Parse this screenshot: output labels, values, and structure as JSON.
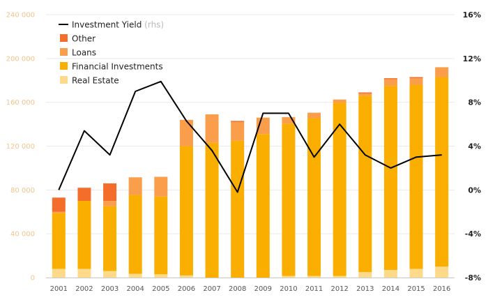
{
  "chart_data": {
    "type": "bar",
    "stacked": true,
    "categories": [
      "2001",
      "2002",
      "2003",
      "2004",
      "2005",
      "2006",
      "2007",
      "2008",
      "2009",
      "2010",
      "2011",
      "2012",
      "2013",
      "2014",
      "2015",
      "2016"
    ],
    "series": [
      {
        "name": "Real Estate",
        "color": "#fdd98a",
        "values": [
          8000,
          8000,
          6000,
          3500,
          3000,
          2000,
          0,
          0,
          0,
          1500,
          1500,
          1500,
          5000,
          7000,
          8000,
          10000
        ]
      },
      {
        "name": "Financial Investments",
        "color": "#f9ae00",
        "values": [
          51000,
          62000,
          59000,
          72000,
          71000,
          118000,
          123000,
          125000,
          131000,
          139000,
          144000,
          158000,
          161000,
          168000,
          168000,
          173000
        ]
      },
      {
        "name": "Loans",
        "color": "#fb9e4b",
        "values": [
          1000,
          0,
          5000,
          16000,
          18000,
          24000,
          26000,
          17000,
          15000,
          6000,
          5000,
          3000,
          2000,
          6000,
          6000,
          9000
        ]
      },
      {
        "name": "Other",
        "color": "#f56d2b",
        "values": [
          13000,
          12000,
          16000,
          0,
          0,
          0,
          0,
          1000,
          0,
          0,
          0,
          0,
          1000,
          1000,
          1000,
          0
        ]
      }
    ],
    "line_series": {
      "name": "Investment Yield",
      "name_suffix": "(rhs)",
      "color": "#000000",
      "values": [
        0.0,
        5.4,
        3.2,
        9.0,
        9.9,
        6.3,
        3.6,
        -0.2,
        7.0,
        7.0,
        3.0,
        6.0,
        3.2,
        2.0,
        3.0,
        3.2
      ]
    },
    "y_left": {
      "min": 0,
      "max": 240000,
      "ticks": [
        "0",
        "40 000",
        "80 000",
        "120 000",
        "160 000",
        "200 000",
        "240 000"
      ],
      "tick_values": [
        0,
        40000,
        80000,
        120000,
        160000,
        200000,
        240000
      ]
    },
    "y_right": {
      "min": -8,
      "max": 16,
      "ticks": [
        "-8%",
        "-4%",
        "0%",
        "4%",
        "8%",
        "12%",
        "16%"
      ],
      "tick_values": [
        -8,
        -4,
        0,
        4,
        8,
        12,
        16
      ]
    },
    "grid": true,
    "legend": {
      "placement": "top-left",
      "entries": [
        {
          "label": "Investment Yield",
          "suffix": "(rhs)",
          "kind": "line",
          "color": "#000000"
        },
        {
          "label": "Other",
          "kind": "box",
          "color": "#f56d2b"
        },
        {
          "label": "Loans",
          "kind": "box",
          "color": "#fb9e4b"
        },
        {
          "label": "Financial Investments",
          "kind": "box",
          "color": "#f9ae00"
        },
        {
          "label": "Real Estate",
          "kind": "box",
          "color": "#fdd98a"
        }
      ]
    },
    "title": "",
    "xlabel": "",
    "ylabel": ""
  }
}
